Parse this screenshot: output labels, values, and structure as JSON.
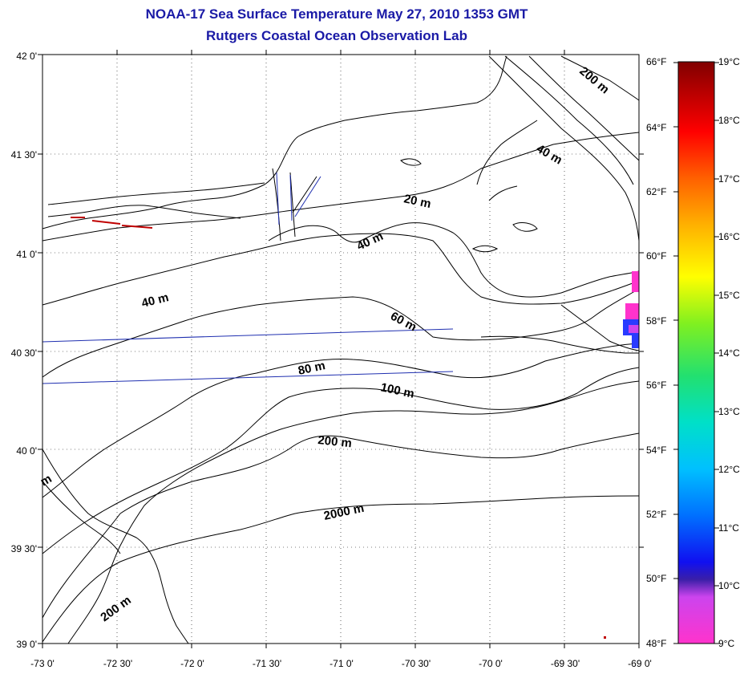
{
  "title": "NOAA-17 Sea Surface Temperature May 27, 2010 1353 GMT",
  "subtitle": "Rutgers Coastal Ocean Observation Lab",
  "latitude_labels": [
    "42 0'",
    "41 30'",
    "41 0'",
    "40 30'",
    "40 0'",
    "39 30'",
    "39 0'"
  ],
  "longitude_labels": [
    "-73 0'",
    "-72 30'",
    "-72 0'",
    "-71 30'",
    "-71 0'",
    "-70 30'",
    "-70 0'",
    "-69 30'",
    "-69 0'"
  ],
  "colorbar": {
    "fahrenheit_labels": [
      "66°F",
      "64°F",
      "62°F",
      "60°F",
      "58°F",
      "56°F",
      "54°F",
      "52°F",
      "50°F",
      "48°F"
    ],
    "celsius_labels": [
      "19°C",
      "18°C",
      "17°C",
      "16°C",
      "15°C",
      "14°C",
      "13°C",
      "12°C",
      "11°C",
      "10°C",
      "9°C"
    ]
  },
  "depth_contour_labels": [
    {
      "id": "c200top",
      "text": "200 m"
    },
    {
      "id": "c40ne",
      "text": "40 m"
    },
    {
      "id": "c20",
      "text": "20 m"
    },
    {
      "id": "c40c",
      "text": "40 m"
    },
    {
      "id": "c40w",
      "text": "40 m"
    },
    {
      "id": "c60",
      "text": "60 m"
    },
    {
      "id": "c80",
      "text": "80 m"
    },
    {
      "id": "c100",
      "text": "100 m"
    },
    {
      "id": "c200mid",
      "text": "200 m"
    },
    {
      "id": "c2000",
      "text": "2000 m"
    },
    {
      "id": "c200sw",
      "text": "200 m"
    },
    {
      "id": "cedge",
      "text": "m"
    }
  ],
  "colors": {
    "title": "#1a1aa6",
    "sst_patch": "#ff33cc",
    "sst_patch_cold": "#2a3bff",
    "track_lines": "#1f2fb0",
    "coast_red": "#c00000"
  }
}
